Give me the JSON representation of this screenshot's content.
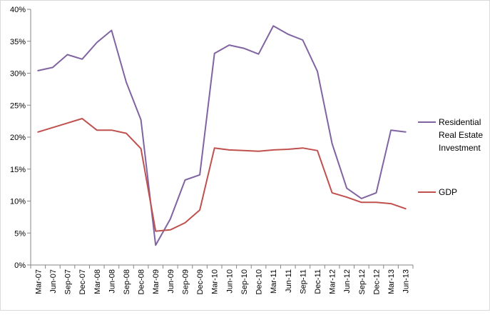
{
  "chart_data": {
    "type": "line",
    "title": "",
    "xlabel": "",
    "ylabel": "",
    "categories": [
      "Mar-07",
      "Jun-07",
      "Sep-07",
      "Dec-07",
      "Mar-08",
      "Jun-08",
      "Sep-08",
      "Dec-08",
      "Mar-09",
      "Jun-09",
      "Sep-09",
      "Dec-09",
      "Mar-10",
      "Jun-10",
      "Sep-10",
      "Dec-10",
      "Mar-11",
      "Jun-11",
      "Sep-11",
      "Dec-11",
      "Mar-12",
      "Jun-12",
      "Sep-12",
      "Dec-12",
      "Mar-13",
      "Jun-13"
    ],
    "ylim": [
      0,
      40
    ],
    "yticks": [
      0,
      5,
      10,
      15,
      20,
      25,
      30,
      35,
      40
    ],
    "ytick_format": "percent",
    "grid": false,
    "legend_position": "right",
    "series": [
      {
        "name": "Residential Real Estate Investment",
        "color": "#8064a2",
        "values": [
          30.4,
          30.9,
          32.9,
          32.2,
          34.8,
          36.7,
          28.6,
          22.7,
          3.1,
          7.2,
          13.3,
          14.1,
          33.1,
          34.4,
          33.9,
          33.0,
          37.4,
          36.1,
          35.2,
          30.3,
          19.0,
          12.0,
          10.4,
          11.3,
          21.1,
          20.8
        ]
      },
      {
        "name": "GDP",
        "color": "#c0504d",
        "values": [
          20.8,
          21.5,
          22.2,
          22.9,
          21.1,
          21.1,
          20.6,
          18.2,
          5.3,
          5.5,
          6.6,
          8.6,
          18.3,
          18.0,
          17.9,
          17.8,
          18.0,
          18.1,
          18.3,
          17.9,
          11.3,
          10.6,
          9.8,
          9.8,
          9.6,
          8.8
        ]
      }
    ]
  }
}
